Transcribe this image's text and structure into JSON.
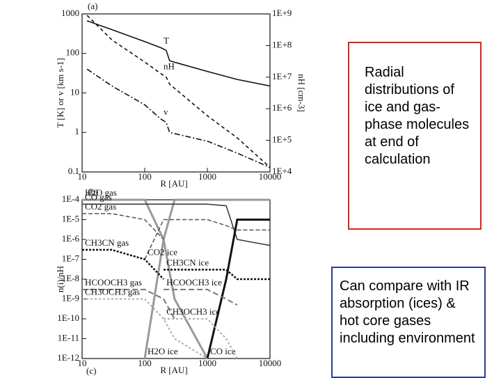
{
  "chart_data": [
    {
      "type": "line",
      "panel": "(a)",
      "xlabel": "R [AU]",
      "ylabel": "T [K] or v [km s-1]",
      "y2label": "nH [cm-3]",
      "xlog": true,
      "ylog": true,
      "y2log": true,
      "xlim": [
        10,
        10000
      ],
      "xticks": [
        10,
        100,
        1000,
        10000
      ],
      "ylim": [
        0.1,
        1000
      ],
      "yticks": [
        0.1,
        1,
        10,
        100,
        1000
      ],
      "y2lim": [
        10000,
        1000000000
      ],
      "y2ticks": [
        {
          "value": 10000,
          "label": "1E+4"
        },
        {
          "value": 100000,
          "label": "1E+5"
        },
        {
          "value": 1000000,
          "label": "1E+6"
        },
        {
          "value": 10000000,
          "label": "1E+7"
        },
        {
          "value": 100000000,
          "label": "1E+8"
        },
        {
          "value": 1000000000,
          "label": "1E+9"
        }
      ],
      "x": [
        12,
        30,
        100,
        180,
        220,
        250,
        1000,
        3000,
        10000
      ],
      "series": [
        {
          "name": "T",
          "color": "#111111",
          "dash": "none",
          "values": [
            670,
            400,
            200,
            140,
            120,
            65,
            35,
            22,
            15
          ]
        },
        {
          "name": "nH",
          "color": "#111111",
          "dash": "5 4",
          "axis": "y2",
          "values": [
            900000000,
            150000000,
            30000000,
            13000000,
            10000000,
            6000000,
            600000,
            120000,
            14000
          ]
        },
        {
          "name": "v",
          "color": "#111111",
          "dash": "8 3 2 3",
          "values": [
            40,
            15,
            5,
            2.2,
            1.8,
            1,
            0.6,
            0.3,
            0.13
          ]
        }
      ]
    },
    {
      "type": "line",
      "panel": "(b)",
      "caption": "(c)",
      "xlabel": "R [AU]",
      "ylabel": "n(i)/nH",
      "xlog": true,
      "ylog": true,
      "xlim": [
        10,
        10000
      ],
      "xticks": [
        10,
        100,
        1000,
        10000
      ],
      "ylim": [
        1e-12,
        0.0001
      ],
      "yticks": [
        {
          "value": 1e-12,
          "label": "1E-12"
        },
        {
          "value": 1e-11,
          "label": "1E-11"
        },
        {
          "value": 1e-10,
          "label": "1E-10"
        },
        {
          "value": 1e-09,
          "label": "1E-9"
        },
        {
          "value": 1e-08,
          "label": "1E-8"
        },
        {
          "value": 1e-07,
          "label": "1E-7"
        },
        {
          "value": 1e-06,
          "label": "1E-6"
        },
        {
          "value": 1e-05,
          "label": "1E-5"
        },
        {
          "value": 0.0001,
          "label": "1E-4"
        }
      ],
      "x": [
        10,
        30,
        100,
        200,
        300,
        1000,
        2000,
        3000,
        10000
      ],
      "series": [
        {
          "name": "H2O gas",
          "color": "#999999",
          "dash": "none",
          "width": 3,
          "values": [
            0.0001,
            0.0001,
            0.0001,
            1e-06,
            1e-09,
            1e-12,
            null,
            null,
            null
          ]
        },
        {
          "name": "H2O ice",
          "color": "#999999",
          "dash": "none",
          "width": 3,
          "values": [
            null,
            null,
            1e-12,
            1e-06,
            0.0001,
            0.0001,
            0.0001,
            0.0001,
            0.0001
          ]
        },
        {
          "name": "CO gas",
          "color": "#333333",
          "dash": "none",
          "width": 1.5,
          "values": [
            6e-05,
            6e-05,
            6e-05,
            6e-05,
            6e-05,
            6e-05,
            5e-05,
            1e-06,
            5e-07
          ]
        },
        {
          "name": "CO ice",
          "color": "#111111",
          "dash": "none",
          "width": 3,
          "values": [
            null,
            null,
            null,
            null,
            null,
            1e-12,
            1e-08,
            1e-05,
            1e-05
          ]
        },
        {
          "name": "CO2 gas",
          "color": "#555555",
          "dash": "6 3",
          "width": 1.5,
          "values": [
            2e-05,
            2e-05,
            1e-05,
            1e-06,
            null,
            null,
            null,
            null,
            null
          ]
        },
        {
          "name": "CO2 ice",
          "color": "#555555",
          "dash": "6 3",
          "width": 1.5,
          "values": [
            null,
            null,
            1e-07,
            1e-05,
            1e-05,
            1e-05,
            5e-06,
            3e-06,
            3e-06
          ]
        },
        {
          "name": "CH3CN gas",
          "color": "#111111",
          "dash": "3 2",
          "width": 2.5,
          "values": [
            3e-07,
            3e-07,
            1e-07,
            1e-08,
            null,
            null,
            null,
            null,
            null
          ]
        },
        {
          "name": "CH3CN ice",
          "color": "#111111",
          "dash": "3 2",
          "width": 2.5,
          "values": [
            null,
            null,
            null,
            3e-08,
            3e-08,
            3e-08,
            3e-08,
            1e-08,
            1e-08
          ]
        },
        {
          "name": "HCOOCH3 gas",
          "color": "#777777",
          "dash": "8 4",
          "width": 2,
          "values": [
            3e-09,
            3e-09,
            3e-09,
            1e-09,
            1e-10,
            null,
            null,
            null,
            null
          ]
        },
        {
          "name": "HCOOCH3 ice",
          "color": "#777777",
          "dash": "8 4",
          "width": 2,
          "values": [
            null,
            null,
            null,
            3e-09,
            3e-09,
            3e-09,
            1e-09,
            5e-10,
            null
          ]
        },
        {
          "name": "CH3OCH3 gas",
          "color": "#aaaaaa",
          "dash": "3 3",
          "width": 2,
          "values": [
            1e-09,
            1e-09,
            1e-09,
            1e-10,
            1e-11,
            1e-12,
            null,
            null,
            null
          ]
        },
        {
          "name": "CH3OCH3 ice",
          "color": "#aaaaaa",
          "dash": "3 3",
          "width": 2,
          "values": [
            null,
            null,
            null,
            1e-10,
            1e-10,
            1e-10,
            1e-11,
            1e-12,
            null
          ]
        }
      ]
    }
  ],
  "text_boxes": [
    "Radial distributions of ice and gas-phase molecules at end of calculation",
    "Can compare with IR absorption (ices) & hot core gases including environment"
  ]
}
